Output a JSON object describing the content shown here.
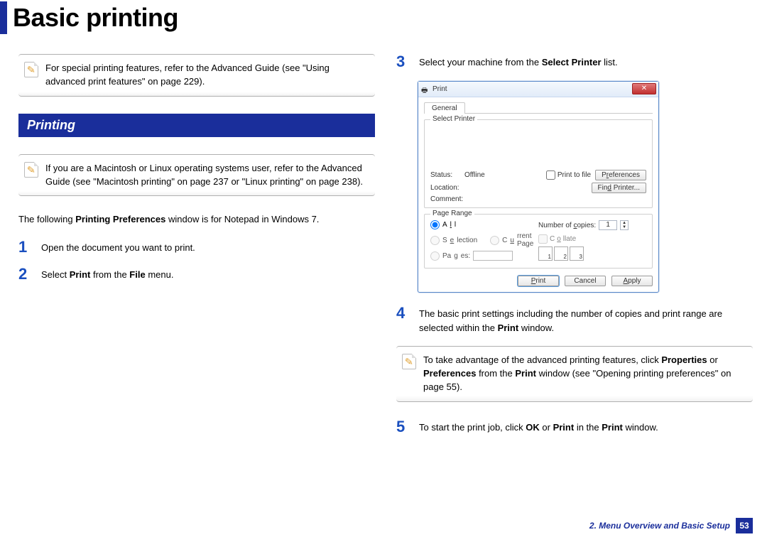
{
  "title": "Basic printing",
  "section_header": "Printing",
  "colors": {
    "accent": "#1a2e9b",
    "step_num": "#1a4fbf"
  },
  "left": {
    "note1": "For special printing features, refer to the Advanced Guide (see \"Using advanced print features\" on page 229).",
    "note2": "If you are a Macintosh or Linux operating systems user, refer to the Advanced Guide (see \"Macintosh printing\" on page 237 or \"Linux printing\" on page 238).",
    "intro_pre": "The following ",
    "intro_bold": "Printing Preferences",
    "intro_post": " window is for Notepad in Windows 7.",
    "step1": "Open the document you want to print.",
    "step2_pre": "Select ",
    "step2_b1": "Print",
    "step2_mid": " from the ",
    "step2_b2": "File",
    "step2_post": " menu."
  },
  "right": {
    "step3_pre": "Select your machine from the ",
    "step3_bold": "Select Printer",
    "step3_post": " list.",
    "step4_pre": "The basic print settings including the number of copies and print range are selected within the ",
    "step4_bold": "Print",
    "step4_post": " window.",
    "note3_a": "To take advantage of the advanced printing features, click ",
    "note3_b1": "Properties",
    "note3_b": " or ",
    "note3_b2": "Preferences",
    "note3_c": " from the ",
    "note3_b3": "Print",
    "note3_d": " window (see \"Opening printing preferences\" on page 55).",
    "step5_pre": "To start the print job, click ",
    "step5_b1": "OK",
    "step5_mid": " or ",
    "step5_b2": "Print",
    "step5_mid2": " in the ",
    "step5_b3": "Print",
    "step5_post": " window."
  },
  "dialog": {
    "title": "Print",
    "tab": "General",
    "group_printer": "Select Printer",
    "status_label": "Status:",
    "status_value": "Offline",
    "location_label": "Location:",
    "comment_label": "Comment:",
    "print_to_file": "Print to file",
    "btn_preferences": "Preferences",
    "btn_find": "Find Printer...",
    "group_range": "Page Range",
    "opt_all": "All",
    "opt_selection": "Selection",
    "opt_current": "Current Page",
    "opt_pages": "Pages:",
    "copies_label": "Number of copies:",
    "copies_value": "1",
    "collate": "Collate",
    "btn_print": "Print",
    "btn_cancel": "Cancel",
    "btn_apply": "Apply"
  },
  "footer": {
    "chapter": "2.  Menu Overview and Basic Setup",
    "page": "53"
  }
}
